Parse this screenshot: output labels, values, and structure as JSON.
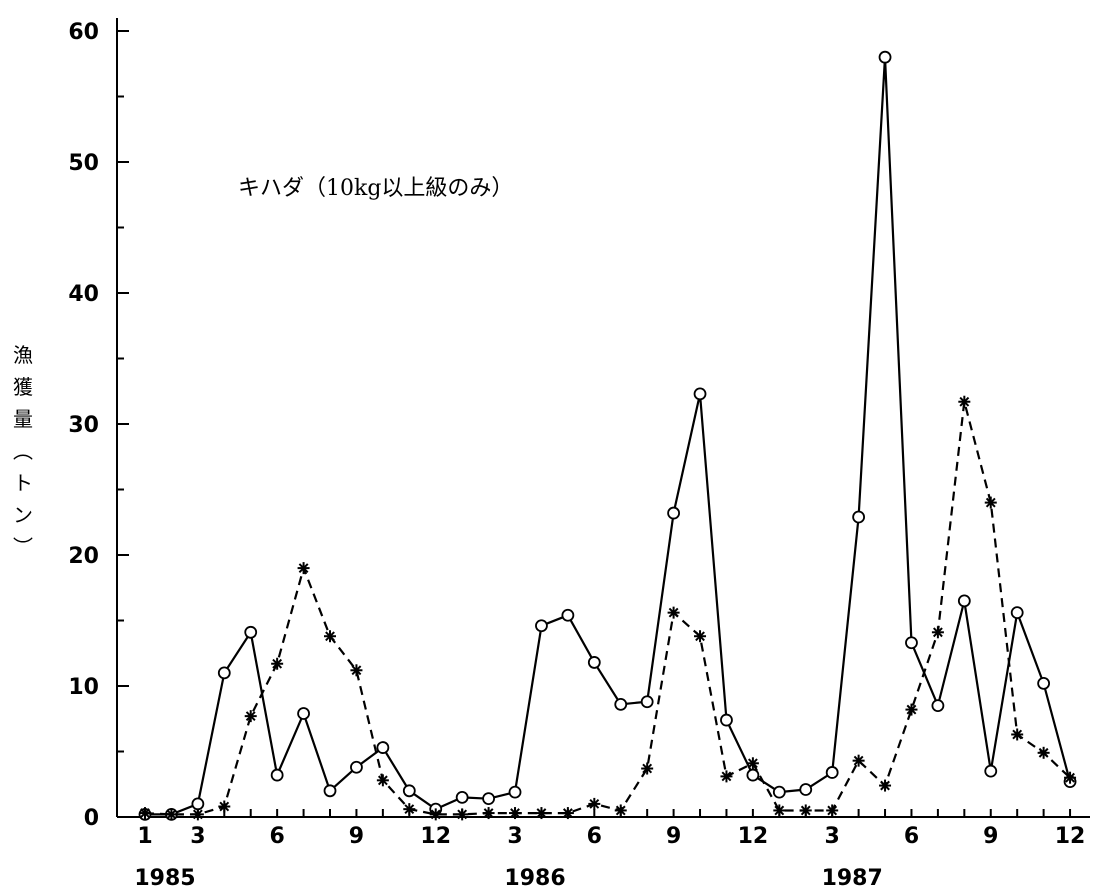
{
  "chart_data": {
    "type": "line",
    "annotation": "キハダ（10kg以上級のみ）",
    "ylabel": "漁獲量（トン）",
    "ylim": [
      0,
      60
    ],
    "yticks": [
      0,
      10,
      20,
      30,
      40,
      50,
      60
    ],
    "xtick_labels": [
      "1",
      "3",
      "6",
      "9",
      "12",
      "3",
      "6",
      "9",
      "12",
      "3",
      "6",
      "9",
      "12"
    ],
    "xtick_months": [
      1,
      3,
      6,
      9,
      12,
      15,
      18,
      21,
      24,
      27,
      30,
      33,
      36
    ],
    "years": [
      {
        "label": "1985",
        "month": 1
      },
      {
        "label": "1986",
        "month": 15
      },
      {
        "label": "1987",
        "month": 27
      }
    ],
    "x": [
      1,
      2,
      3,
      4,
      5,
      6,
      7,
      8,
      9,
      10,
      11,
      12,
      13,
      14,
      15,
      16,
      17,
      18,
      19,
      20,
      21,
      22,
      23,
      24,
      25,
      26,
      27,
      28,
      29,
      30,
      31,
      32,
      33,
      34,
      35,
      36
    ],
    "series": [
      {
        "style": "solid",
        "marker": "circle",
        "color": "#000000",
        "values": [
          0.2,
          0.2,
          1.0,
          11.0,
          14.1,
          3.2,
          7.9,
          2.0,
          3.8,
          5.3,
          2.0,
          0.6,
          1.5,
          1.4,
          1.9,
          14.6,
          15.4,
          11.8,
          8.6,
          8.8,
          23.2,
          32.3,
          7.4,
          3.2,
          1.9,
          2.1,
          3.4,
          22.9,
          58.0,
          13.3,
          8.5,
          16.5,
          3.5,
          15.6,
          10.2,
          2.7
        ]
      },
      {
        "style": "dashed",
        "marker": "asterisk",
        "color": "#000000",
        "values": [
          0.3,
          0.2,
          0.2,
          0.8,
          7.7,
          11.7,
          19.0,
          13.8,
          11.2,
          2.8,
          0.6,
          0.2,
          0.2,
          0.3,
          0.3,
          0.3,
          0.3,
          1.0,
          0.5,
          3.7,
          15.6,
          13.8,
          3.1,
          4.1,
          0.5,
          0.5,
          0.5,
          4.3,
          2.4,
          8.2,
          14.1,
          31.7,
          24.0,
          6.3,
          4.9,
          3.0
        ]
      }
    ]
  }
}
